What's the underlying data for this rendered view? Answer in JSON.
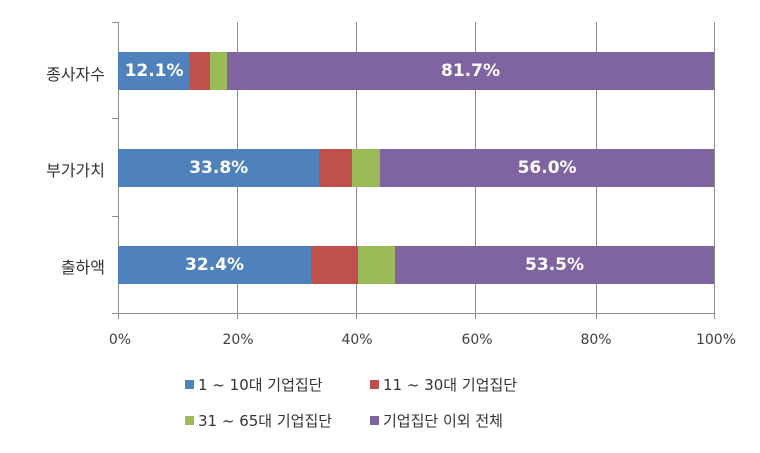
{
  "chart_data": {
    "type": "bar",
    "orientation": "horizontal",
    "stacked": "percent",
    "title": "",
    "xlabel": "",
    "ylabel": "",
    "xlim": [
      0,
      100
    ],
    "x_ticks": [
      "0%",
      "20%",
      "40%",
      "60%",
      "80%",
      "100%"
    ],
    "grid": true,
    "legend_position": "bottom",
    "categories": [
      "종사자수",
      "부가가치",
      "출하액"
    ],
    "series": [
      {
        "name": "1 ~ 10대 기업집단",
        "color": "#4f81bd",
        "values": [
          12.1,
          33.8,
          32.4
        ],
        "labels": [
          "12.1%",
          "33.8%",
          "32.4%"
        ]
      },
      {
        "name": "11 ~ 30대 기업집단",
        "color": "#c0504d",
        "values": [
          3.4,
          5.5,
          7.9
        ],
        "labels": [
          "",
          "",
          ""
        ]
      },
      {
        "name": "31 ~ 65대 기업집단",
        "color": "#9bbb59",
        "values": [
          2.8,
          4.7,
          6.2
        ],
        "labels": [
          "",
          "",
          ""
        ]
      },
      {
        "name": "기업집단 이외 전체",
        "color": "#8064a2",
        "values": [
          81.7,
          56.0,
          53.5
        ],
        "labels": [
          "81.7%",
          "56.0%",
          "53.5%"
        ]
      }
    ]
  }
}
